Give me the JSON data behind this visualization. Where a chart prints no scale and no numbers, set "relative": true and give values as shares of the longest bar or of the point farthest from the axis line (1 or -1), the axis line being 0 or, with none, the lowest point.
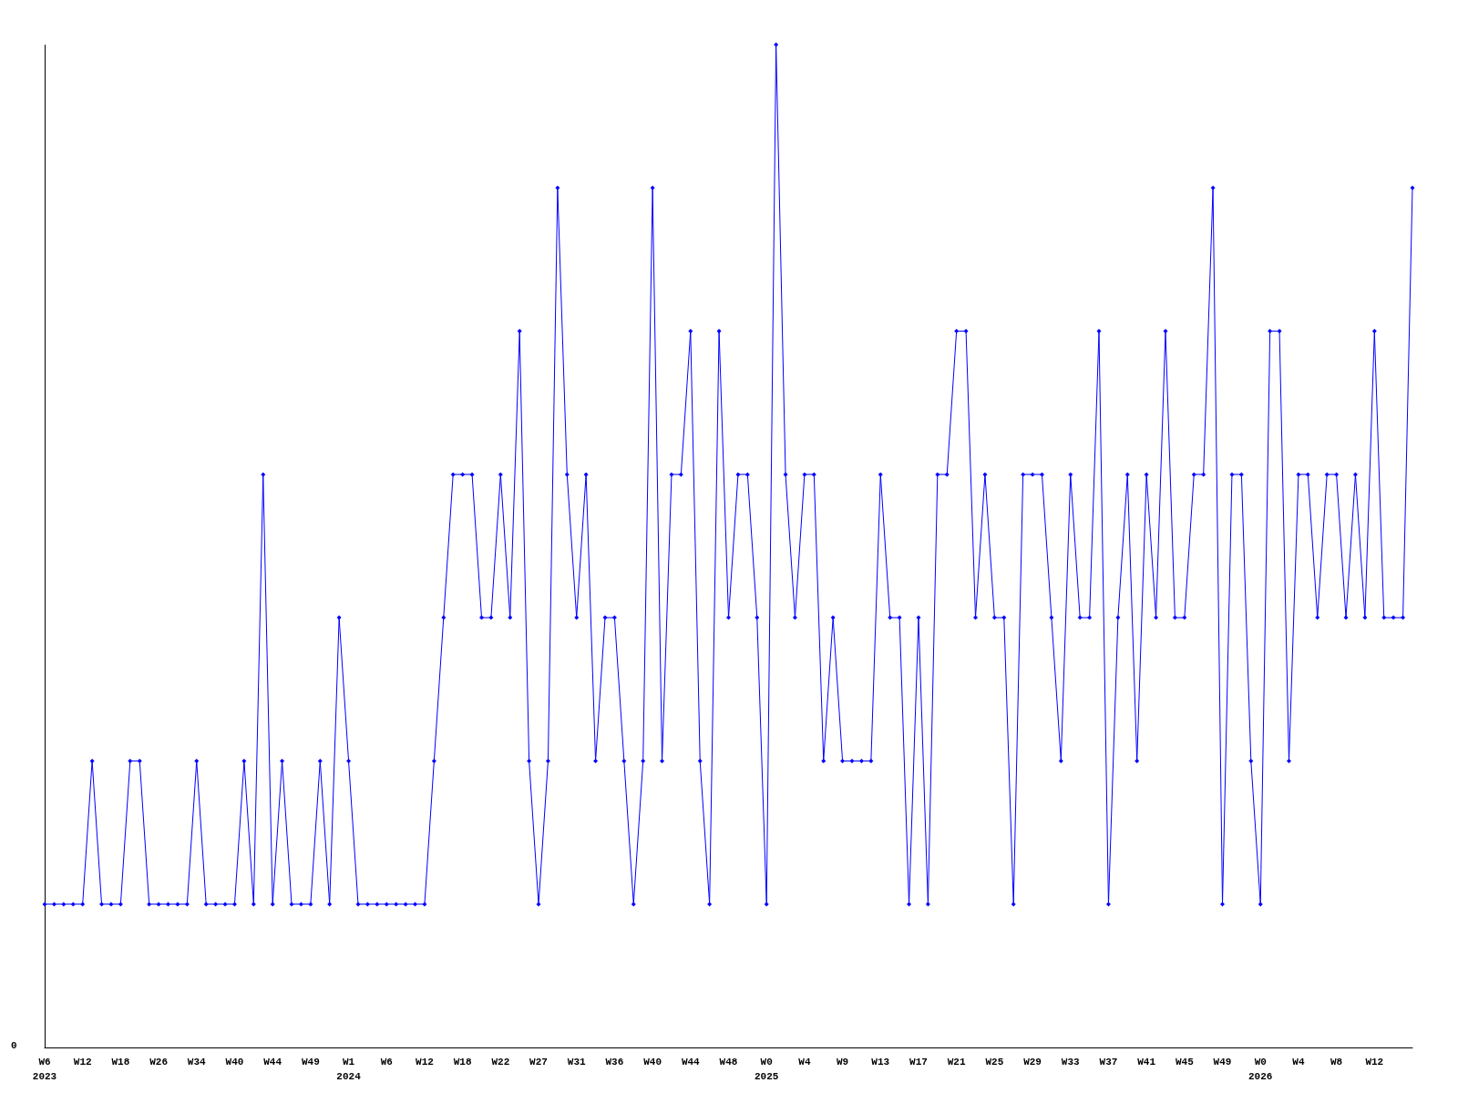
{
  "chart_data": {
    "type": "line",
    "relative": true,
    "annotations": [
      "0"
    ],
    "marker": "diamond",
    "line_style": "solid",
    "categories": [
      "W6\n2023",
      null,
      null,
      null,
      "W12",
      null,
      null,
      null,
      "W18",
      null,
      null,
      null,
      "W26",
      null,
      null,
      null,
      "W34",
      null,
      null,
      null,
      "W40",
      null,
      null,
      null,
      "W44",
      null,
      null,
      null,
      "W49",
      null,
      null,
      null,
      "W1\n2024",
      null,
      null,
      null,
      "W6",
      null,
      null,
      null,
      "W12",
      null,
      null,
      null,
      "W18",
      null,
      null,
      null,
      "W22",
      null,
      null,
      null,
      "W27",
      null,
      null,
      null,
      "W31",
      null,
      null,
      null,
      "W36",
      null,
      null,
      null,
      "W40",
      null,
      null,
      null,
      "W44",
      null,
      null,
      null,
      "W48",
      null,
      null,
      null,
      "W0\n2025",
      null,
      null,
      null,
      "W4",
      null,
      null,
      null,
      "W9",
      null,
      null,
      null,
      "W13",
      null,
      null,
      null,
      "W17",
      null,
      null,
      null,
      "W21",
      null,
      null,
      null,
      "W25",
      null,
      null,
      null,
      "W29",
      null,
      null,
      null,
      "W33",
      null,
      null,
      null,
      "W37",
      null,
      null,
      null,
      "W41",
      null,
      null,
      null,
      "W45",
      null,
      null,
      null,
      "W49",
      null,
      null,
      null,
      "W0\n2026",
      null,
      null,
      null,
      "W4",
      null,
      null,
      null,
      "W8",
      null,
      null,
      null,
      "W12",
      null,
      null,
      null,
      null
    ],
    "series": [
      {
        "color": "#0000ff",
        "values": [
          0.1429,
          0.1429,
          0.1429,
          0.1429,
          0.1429,
          0.2857,
          0.1429,
          0.1429,
          0.1429,
          0.2857,
          0.2857,
          0.1429,
          0.1429,
          0.1429,
          0.1429,
          0.1429,
          0.2857,
          0.1429,
          0.1429,
          0.1429,
          0.1429,
          0.2857,
          0.1429,
          0.5714,
          0.1429,
          0.2857,
          0.1429,
          0.1429,
          0.1429,
          0.2857,
          0.1429,
          0.4286,
          0.2857,
          0.1429,
          0.1429,
          0.1429,
          0.1429,
          0.1429,
          0.1429,
          0.1429,
          0.1429,
          0.2857,
          0.4286,
          0.5714,
          0.5714,
          0.5714,
          0.4286,
          0.4286,
          0.5714,
          0.4286,
          0.7143,
          0.2857,
          0.1429,
          0.2857,
          0.8571,
          0.5714,
          0.4286,
          0.5714,
          0.2857,
          0.4286,
          0.4286,
          0.2857,
          0.1429,
          0.2857,
          0.8571,
          0.2857,
          0.5714,
          0.5714,
          0.7143,
          0.2857,
          0.1429,
          0.7143,
          0.4286,
          0.5714,
          0.5714,
          0.4286,
          0.1429,
          1,
          0.5714,
          0.4286,
          0.5714,
          0.5714,
          0.2857,
          0.4286,
          0.2857,
          0.2857,
          0.2857,
          0.2857,
          0.5714,
          0.4286,
          0.4286,
          0.1429,
          0.4286,
          0.1429,
          0.5714,
          0.5714,
          0.7143,
          0.7143,
          0.4286,
          0.5714,
          0.4286,
          0.4286,
          0.1429,
          0.5714,
          0.5714,
          0.5714,
          0.4286,
          0.2857,
          0.5714,
          0.4286,
          0.4286,
          0.7143,
          0.1429,
          0.4286,
          0.5714,
          0.2857,
          0.5714,
          0.4286,
          0.7143,
          0.4286,
          0.4286,
          0.5714,
          0.5714,
          0.8571,
          0.1429,
          0.5714,
          0.5714,
          0.2857,
          0.1429,
          0.7143,
          0.7143,
          0.2857,
          0.5714,
          0.5714,
          0.4286,
          0.5714,
          0.5714,
          0.4286,
          0.5714,
          0.4286,
          0.7143,
          0.4286,
          0.4286,
          0.4286,
          0.8571
        ]
      }
    ]
  }
}
